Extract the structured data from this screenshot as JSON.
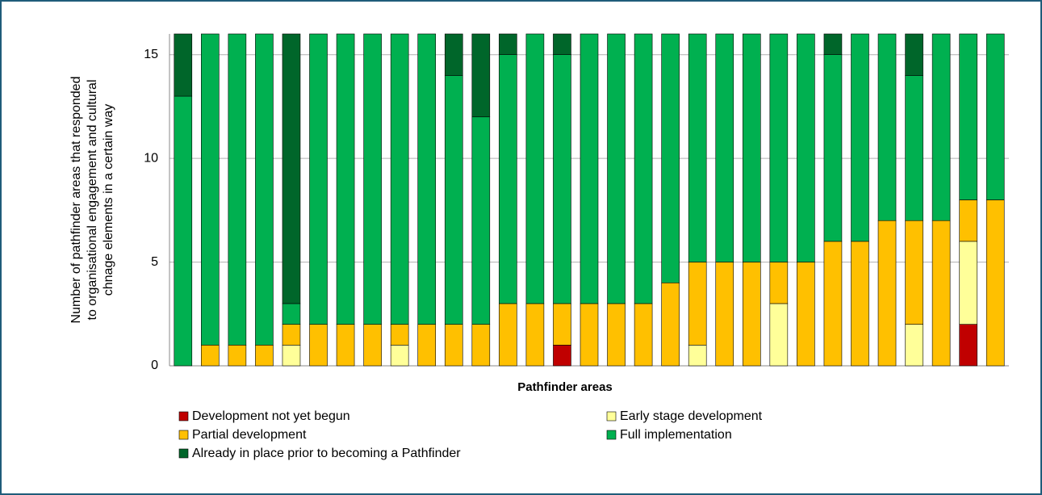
{
  "chart_data": {
    "type": "stacked_bar",
    "ylabel": [
      "Number of pathfinder areas that responded",
      "to  organisational engagement  and cultural",
      "chnage elements in a certain way"
    ],
    "xlabel": "Pathfinder areas",
    "categories": [
      null,
      null,
      null,
      null,
      null,
      null,
      null,
      null,
      null,
      null,
      null,
      null,
      null,
      null,
      null,
      null,
      null,
      null,
      null,
      null,
      null,
      null,
      null,
      null,
      null,
      null,
      null,
      null,
      null,
      null,
      null
    ],
    "series": [
      {
        "name": "Development not yet begun",
        "color": "#c00000",
        "values": [
          0,
          0,
          0,
          0,
          0,
          0,
          0,
          0,
          0,
          0,
          0,
          0,
          0,
          0,
          1,
          0,
          0,
          0,
          0,
          0,
          0,
          0,
          0,
          0,
          0,
          0,
          0,
          0,
          0,
          2,
          0
        ]
      },
      {
        "name": "Early stage development",
        "color": "#ffff99",
        "values": [
          0,
          0,
          0,
          0,
          1,
          0,
          0,
          0,
          1,
          0,
          0,
          0,
          0,
          0,
          0,
          0,
          0,
          0,
          0,
          1,
          0,
          0,
          3,
          0,
          0,
          0,
          0,
          2,
          0,
          4,
          0
        ]
      },
      {
        "name": "Partial development",
        "color": "#ffc000",
        "values": [
          0,
          1,
          1,
          1,
          1,
          2,
          2,
          2,
          1,
          2,
          2,
          2,
          3,
          3,
          2,
          3,
          3,
          3,
          4,
          4,
          5,
          5,
          2,
          5,
          6,
          6,
          7,
          5,
          7,
          2,
          8
        ]
      },
      {
        "name": "Full implementation",
        "color": "#00b050",
        "values": [
          13,
          15,
          15,
          15,
          1,
          14,
          14,
          14,
          14,
          14,
          12,
          10,
          12,
          13,
          12,
          13,
          13,
          13,
          12,
          11,
          11,
          11,
          11,
          11,
          9,
          10,
          9,
          7,
          9,
          8,
          8
        ]
      },
      {
        "name": "Already in place prior to becoming a Pathfinder",
        "color": "#00662a",
        "values": [
          3,
          0,
          0,
          0,
          13,
          0,
          0,
          0,
          0,
          0,
          2,
          4,
          1,
          0,
          1,
          0,
          0,
          0,
          0,
          0,
          0,
          0,
          0,
          0,
          1,
          0,
          0,
          2,
          0,
          0,
          0
        ]
      }
    ],
    "ylim": [
      0,
      16
    ],
    "yticks": [
      0,
      5,
      10,
      15
    ],
    "grid": true
  }
}
